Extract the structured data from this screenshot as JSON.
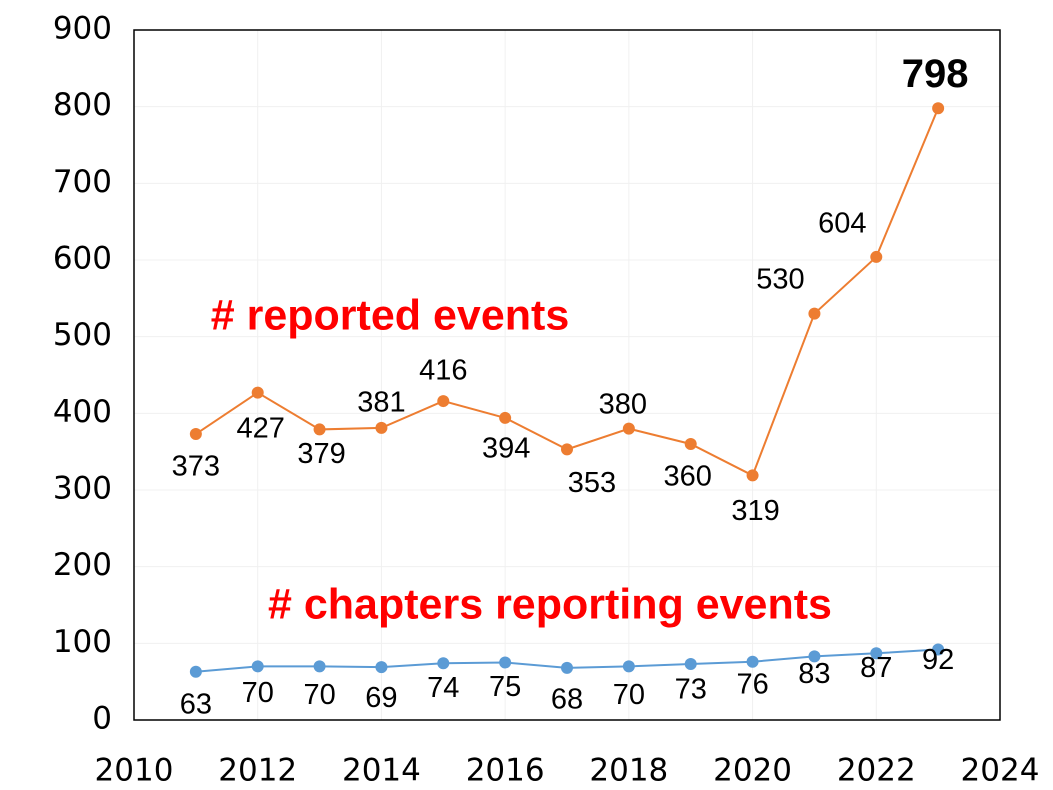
{
  "chart_data": {
    "type": "line",
    "x": [
      2011,
      2012,
      2013,
      2014,
      2015,
      2016,
      2017,
      2018,
      2019,
      2020,
      2021,
      2022,
      2023
    ],
    "series": [
      {
        "name": "# reported events",
        "color": "#ED7D31",
        "values": [
          373,
          427,
          379,
          381,
          416,
          394,
          353,
          380,
          360,
          319,
          530,
          604,
          798
        ]
      },
      {
        "name": "# chapters reporting events",
        "color": "#5B9BD5",
        "values": [
          63,
          70,
          70,
          69,
          74,
          75,
          68,
          70,
          73,
          76,
          83,
          87,
          92
        ]
      }
    ],
    "annotation_color": "#FF0000",
    "xlim": [
      2010,
      2024
    ],
    "xticks": [
      2010,
      2012,
      2014,
      2016,
      2018,
      2020,
      2022,
      2024
    ],
    "ylim": [
      0,
      900
    ],
    "yticks": [
      0,
      100,
      200,
      300,
      400,
      500,
      600,
      700,
      800,
      900
    ],
    "grid": true
  }
}
